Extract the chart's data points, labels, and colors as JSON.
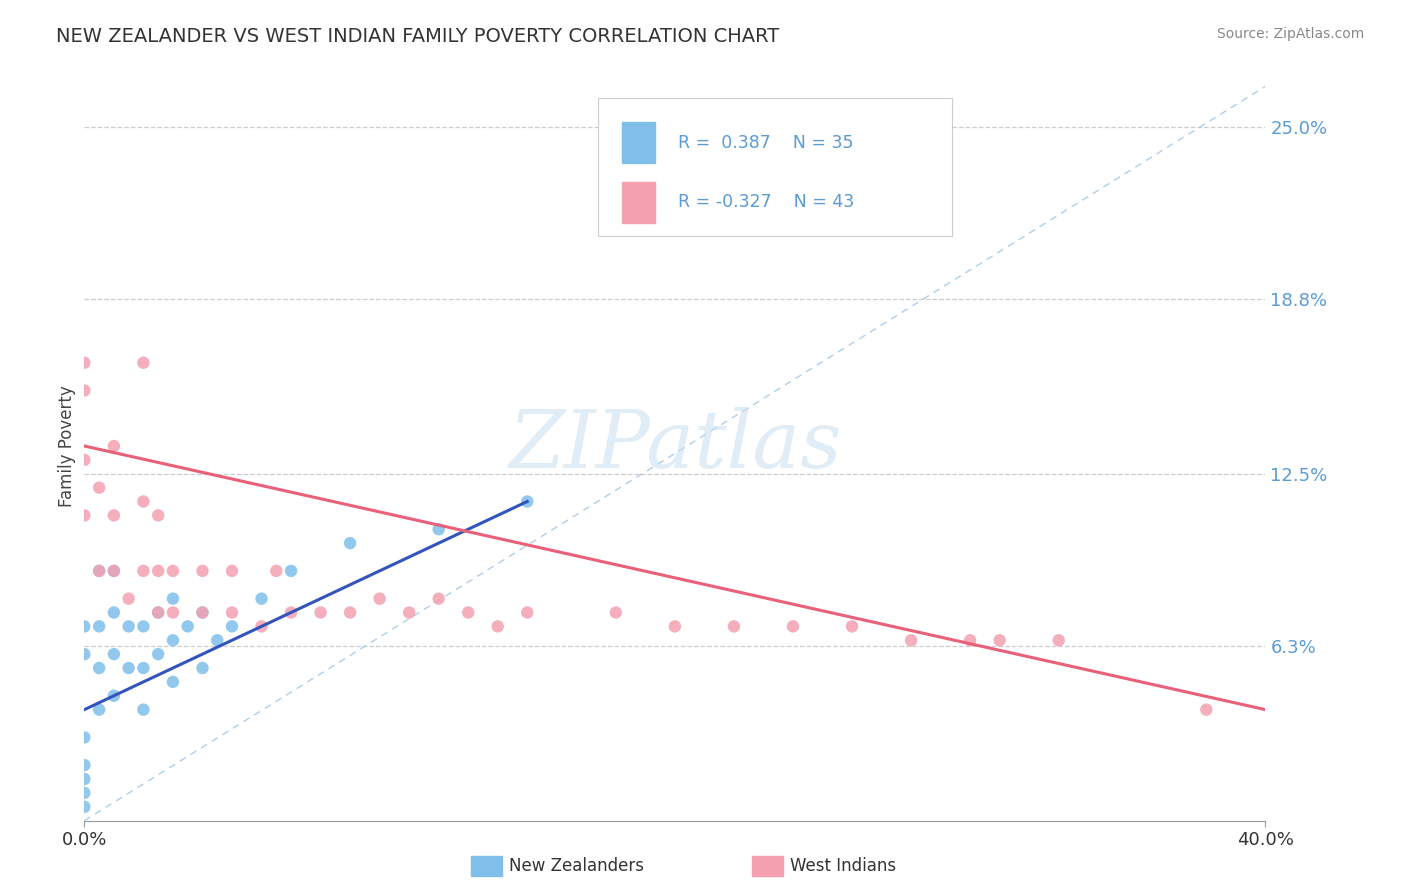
{
  "title": "NEW ZEALANDER VS WEST INDIAN FAMILY POVERTY CORRELATION CHART",
  "source": "Source: ZipAtlas.com",
  "ylabel": "Family Poverty",
  "right_yticks": [
    "25.0%",
    "18.8%",
    "12.5%",
    "6.3%"
  ],
  "right_ytick_vals": [
    0.25,
    0.188,
    0.125,
    0.063
  ],
  "xmin": 0.0,
  "xmax": 0.4,
  "ymin": 0.0,
  "ymax": 0.27,
  "nz_R": 0.387,
  "nz_N": 35,
  "wi_R": -0.327,
  "wi_N": 43,
  "nz_color": "#7fbfea",
  "wi_color": "#f4a0b0",
  "nz_line_color": "#3355bb",
  "wi_line_color": "#e8607a",
  "diagonal_color": "#a8c8e8",
  "nz_x": [
    0.0,
    0.0,
    0.0,
    0.0,
    0.0,
    0.0,
    0.0,
    0.005,
    0.005,
    0.005,
    0.005,
    0.01,
    0.01,
    0.01,
    0.01,
    0.015,
    0.015,
    0.02,
    0.02,
    0.02,
    0.025,
    0.025,
    0.03,
    0.03,
    0.03,
    0.035,
    0.04,
    0.04,
    0.045,
    0.05,
    0.06,
    0.07,
    0.09,
    0.12,
    0.15
  ],
  "nz_y": [
    0.005,
    0.01,
    0.015,
    0.02,
    0.03,
    0.06,
    0.07,
    0.04,
    0.055,
    0.07,
    0.09,
    0.045,
    0.06,
    0.075,
    0.09,
    0.055,
    0.07,
    0.04,
    0.055,
    0.07,
    0.06,
    0.075,
    0.05,
    0.065,
    0.08,
    0.07,
    0.055,
    0.075,
    0.065,
    0.07,
    0.08,
    0.09,
    0.1,
    0.105,
    0.115
  ],
  "wi_x": [
    0.0,
    0.0,
    0.0,
    0.0,
    0.005,
    0.005,
    0.01,
    0.01,
    0.01,
    0.015,
    0.02,
    0.02,
    0.02,
    0.025,
    0.025,
    0.025,
    0.03,
    0.03,
    0.04,
    0.04,
    0.05,
    0.05,
    0.06,
    0.065,
    0.07,
    0.08,
    0.09,
    0.1,
    0.11,
    0.12,
    0.13,
    0.14,
    0.15,
    0.18,
    0.2,
    0.22,
    0.24,
    0.26,
    0.28,
    0.3,
    0.31,
    0.33,
    0.38
  ],
  "wi_y": [
    0.11,
    0.13,
    0.155,
    0.165,
    0.09,
    0.12,
    0.09,
    0.11,
    0.135,
    0.08,
    0.09,
    0.115,
    0.165,
    0.075,
    0.09,
    0.11,
    0.075,
    0.09,
    0.075,
    0.09,
    0.075,
    0.09,
    0.07,
    0.09,
    0.075,
    0.075,
    0.075,
    0.08,
    0.075,
    0.08,
    0.075,
    0.07,
    0.075,
    0.075,
    0.07,
    0.07,
    0.07,
    0.07,
    0.065,
    0.065,
    0.065,
    0.065,
    0.04
  ],
  "legend_nz_text": "R =  0.387    N = 35",
  "legend_wi_text": "R = -0.327    N = 43"
}
